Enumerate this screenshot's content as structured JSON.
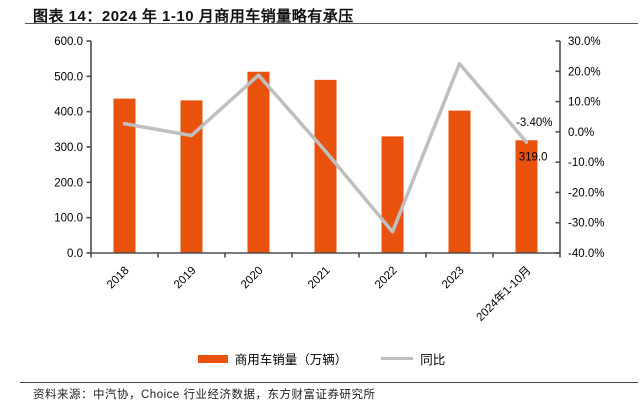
{
  "header": {
    "title": "图表 14：2024 年 1-10 月商用车销量略有承压"
  },
  "chart_data": {
    "type": "bar",
    "combo": "bar+line",
    "categories": [
      "2018",
      "2019",
      "2020",
      "2021",
      "2022",
      "2023",
      "2024年1-10月"
    ],
    "series": [
      {
        "name": "商用车销量（万辆）",
        "type": "bar",
        "axis": "left",
        "color": "#E8520D",
        "values": [
          437.0,
          432.0,
          513.0,
          490.0,
          330.0,
          403.0,
          319.0
        ]
      },
      {
        "name": "同比",
        "type": "line",
        "axis": "right",
        "color": "#BFBFBF",
        "values": [
          2.7,
          -1.2,
          18.7,
          -6.4,
          -33.0,
          22.5,
          -3.4
        ]
      }
    ],
    "left_axis": {
      "min": 0,
      "max": 600,
      "step": 100,
      "tick_labels": [
        "600.0",
        "500.0",
        "400.0",
        "300.0",
        "200.0",
        "100.0",
        "0.0"
      ]
    },
    "right_axis": {
      "min": -40,
      "max": 30,
      "step": 10,
      "tick_labels": [
        "30.0%",
        "20.0%",
        "10.0%",
        "0.0%",
        "-10.0%",
        "-20.0%",
        "-30.0%",
        "-40.0%"
      ]
    },
    "annotations": [
      {
        "text": "-3.40%",
        "target": "line",
        "point_index": 6
      },
      {
        "text": "319.0",
        "target": "bar",
        "point_index": 6
      }
    ],
    "legend_position": "bottom",
    "grid": false
  },
  "footer": {
    "source": "资料来源：中汽协，Choice 行业经济数据，东方财富证券研究所"
  },
  "colors": {
    "bar": "#E8520D",
    "line": "#BFBFBF",
    "axis": "#4D4D4D",
    "text": "#000000",
    "rule": "#555555"
  }
}
